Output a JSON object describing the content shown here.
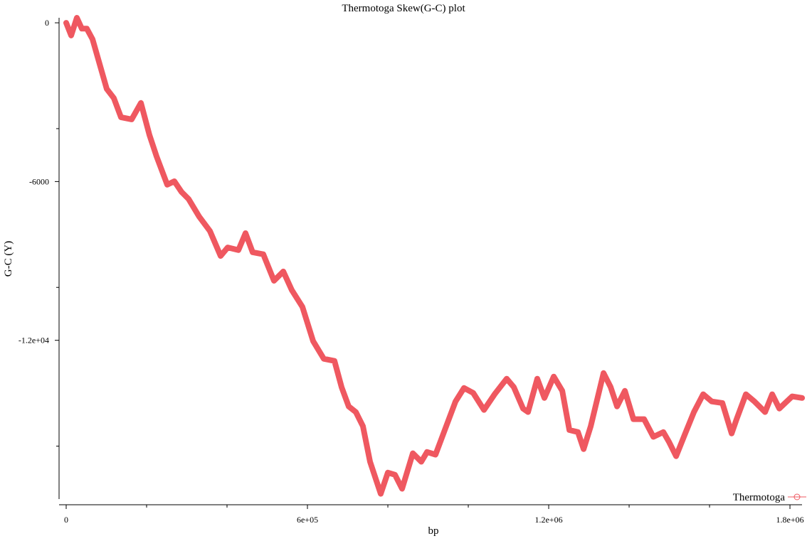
{
  "chart_data": {
    "type": "line",
    "title": "Thermotoga Skew(G-C) plot",
    "x_label": "bp",
    "y_label": "G-C (Y)",
    "legend": "bottom-right",
    "x": [
      0,
      12400,
      26500,
      38900,
      51300,
      65500,
      83200,
      100900,
      118600,
      136300,
      162800,
      185900,
      207100,
      224800,
      251300,
      269000,
      286700,
      304400,
      331000,
      357500,
      384100,
      401800,
      428300,
      446000,
      463700,
      490300,
      516800,
      539900,
      561100,
      587600,
      614200,
      640700,
      667300,
      685000,
      702700,
      720400,
      738100,
      755800,
      782300,
      800000,
      817700,
      835400,
      862000,
      883200,
      897400,
      918600,
      941600,
      968200,
      989400,
      1012400,
      1039000,
      1065500,
      1095600,
      1113300,
      1136300,
      1148700,
      1171700,
      1189400,
      1212500,
      1233700,
      1251400,
      1272600,
      1286800,
      1304500,
      1336400,
      1354100,
      1370000,
      1389500,
      1410700,
      1437200,
      1460300,
      1485000,
      1499200,
      1516900,
      1538100,
      1561100,
      1584200,
      1605400,
      1631900,
      1655000,
      1667300,
      1690400,
      1711600,
      1738100,
      1755800,
      1773500,
      1805400,
      1830200
    ],
    "series": [
      {
        "name": "Thermotoga",
        "color": "#ef5860",
        "values": [
          0,
          -480,
          190,
          -220,
          -220,
          -620,
          -1560,
          -2500,
          -2850,
          -3570,
          -3650,
          -3030,
          -4240,
          -5050,
          -6120,
          -5990,
          -6390,
          -6660,
          -7330,
          -7870,
          -8810,
          -8490,
          -8590,
          -7950,
          -8670,
          -8750,
          -9750,
          -9400,
          -10100,
          -10740,
          -12030,
          -12700,
          -12780,
          -13770,
          -14500,
          -14710,
          -15250,
          -16590,
          -17800,
          -17000,
          -17080,
          -17610,
          -16270,
          -16590,
          -16220,
          -16320,
          -15390,
          -14310,
          -13800,
          -13990,
          -14630,
          -14040,
          -13450,
          -13770,
          -14580,
          -14710,
          -13450,
          -14180,
          -13370,
          -13910,
          -15390,
          -15470,
          -16110,
          -15250,
          -13240,
          -13770,
          -14500,
          -13910,
          -14980,
          -14980,
          -15650,
          -15470,
          -15840,
          -16380,
          -15570,
          -14710,
          -14040,
          -14310,
          -14370,
          -15520,
          -14980,
          -14040,
          -14310,
          -14710,
          -14040,
          -14580,
          -14120,
          -14180
        ]
      }
    ],
    "xlim": [
      -17700,
      1830000
    ],
    "ylim": [
      -18000,
      190
    ],
    "xticks": [
      0,
      {
        "value": 600000,
        "label": "6e+05"
      },
      {
        "value": 1200000,
        "label": "1.2e+06"
      },
      {
        "value": 1800000,
        "label": "1.8e+06"
      }
    ],
    "x_minor_ticks": [
      200000,
      400000,
      800000,
      1000000,
      1400000,
      1600000
    ],
    "yticks": [
      0,
      -6000,
      {
        "value": -12000,
        "label": "-1.2e+04"
      }
    ],
    "y_minor_ticks": [
      -4000,
      -10000,
      -16000
    ]
  }
}
